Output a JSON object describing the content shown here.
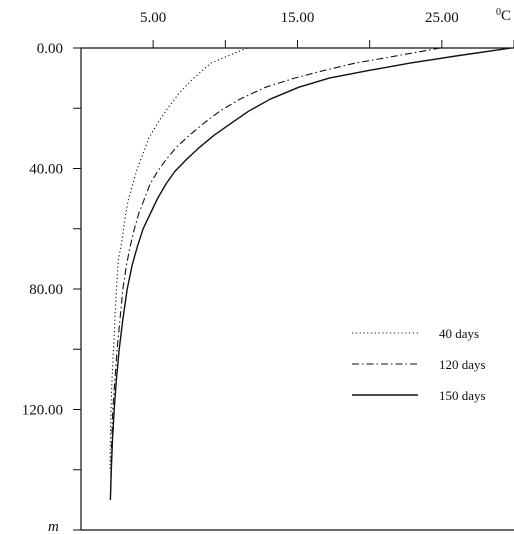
{
  "chart_data": {
    "type": "line",
    "x_axis": {
      "position": "top",
      "range": [
        0,
        30
      ],
      "ticks": [
        5,
        10,
        15,
        20,
        25,
        30
      ],
      "tick_labels": [
        "5.00",
        "15.00",
        "25.00"
      ],
      "labeled_ticks": [
        5,
        15,
        25
      ],
      "unit": "C",
      "unit_superscript": "0"
    },
    "y_axis": {
      "inverted": true,
      "range": [
        0,
        160
      ],
      "ticks": [
        0,
        20,
        40,
        60,
        80,
        100,
        120,
        140,
        160
      ],
      "tick_labels": [
        "0.00",
        "40.00",
        "80.00",
        "120.00"
      ],
      "labeled_ticks": [
        0,
        40,
        80,
        120
      ],
      "unit": "m"
    },
    "grid": false,
    "legend_position": "right-middle",
    "series": [
      {
        "name": "40 days",
        "style": "dotted",
        "points": [
          [
            11.5,
            0
          ],
          [
            9.0,
            5
          ],
          [
            7.8,
            10
          ],
          [
            6.8,
            15
          ],
          [
            6.0,
            20
          ],
          [
            5.3,
            25
          ],
          [
            4.7,
            30
          ],
          [
            4.3,
            35
          ],
          [
            3.9,
            40
          ],
          [
            3.6,
            45
          ],
          [
            3.3,
            50
          ],
          [
            3.1,
            55
          ],
          [
            2.95,
            60
          ],
          [
            2.8,
            65
          ],
          [
            2.6,
            70
          ],
          [
            2.45,
            80
          ],
          [
            2.35,
            90
          ],
          [
            2.25,
            100
          ],
          [
            2.15,
            110
          ],
          [
            2.08,
            120
          ],
          [
            2.04,
            130
          ],
          [
            2.01,
            140
          ]
        ]
      },
      {
        "name": "120 days",
        "style": "dash-dot",
        "points": [
          [
            24.9,
            0
          ],
          [
            22.0,
            2.5
          ],
          [
            19.0,
            5
          ],
          [
            16.8,
            7.5
          ],
          [
            14.8,
            10
          ],
          [
            12.8,
            13
          ],
          [
            11.0,
            17
          ],
          [
            9.6,
            21
          ],
          [
            8.5,
            25
          ],
          [
            7.5,
            29
          ],
          [
            6.6,
            33
          ],
          [
            5.9,
            37
          ],
          [
            5.3,
            41
          ],
          [
            4.8,
            45
          ],
          [
            4.4,
            50
          ],
          [
            4.0,
            55
          ],
          [
            3.7,
            60
          ],
          [
            3.4,
            66
          ],
          [
            3.15,
            72
          ],
          [
            2.9,
            80
          ],
          [
            2.7,
            90
          ],
          [
            2.5,
            100
          ],
          [
            2.35,
            110
          ],
          [
            2.2,
            120
          ],
          [
            2.1,
            135
          ],
          [
            2.04,
            150
          ]
        ]
      },
      {
        "name": "150 days",
        "style": "solid",
        "points": [
          [
            29.8,
            0
          ],
          [
            26.2,
            2.5
          ],
          [
            22.8,
            5
          ],
          [
            19.9,
            7.5
          ],
          [
            17.2,
            10
          ],
          [
            15.1,
            13
          ],
          [
            13.1,
            17
          ],
          [
            11.6,
            21
          ],
          [
            10.4,
            25
          ],
          [
            9.2,
            29
          ],
          [
            8.2,
            33
          ],
          [
            7.3,
            37
          ],
          [
            6.5,
            41
          ],
          [
            5.9,
            45
          ],
          [
            5.3,
            50
          ],
          [
            4.8,
            55
          ],
          [
            4.3,
            60
          ],
          [
            3.9,
            66
          ],
          [
            3.55,
            72
          ],
          [
            3.2,
            80
          ],
          [
            2.9,
            90
          ],
          [
            2.65,
            100
          ],
          [
            2.45,
            110
          ],
          [
            2.3,
            120
          ],
          [
            2.18,
            130
          ],
          [
            2.1,
            140
          ],
          [
            2.04,
            150
          ]
        ]
      }
    ]
  }
}
